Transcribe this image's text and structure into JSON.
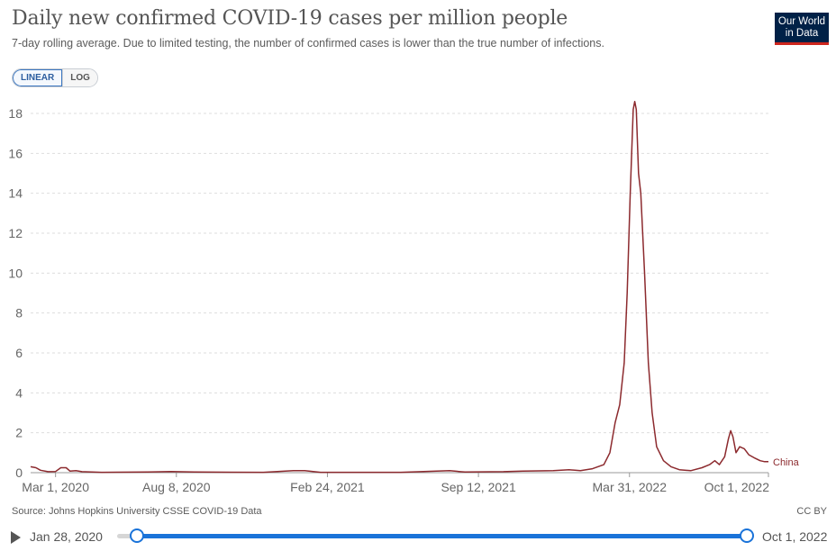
{
  "header": {
    "title": "Daily new confirmed COVID-19 cases per million people",
    "subtitle": "7-day rolling average. Due to limited testing, the number of confirmed cases is lower than the true number of infections.",
    "logo_line1": "Our World",
    "logo_line2": "in Data"
  },
  "controls": {
    "linear_label": "LINEAR",
    "log_label": "LOG",
    "active_scale": "linear"
  },
  "footer": {
    "source": "Source: Johns Hopkins University CSSE COVID-19 Data",
    "license": "CC BY"
  },
  "timeline": {
    "start_label": "Jan 28, 2020",
    "end_label": "Oct 1, 2022"
  },
  "colors": {
    "line": "#8c2a2e",
    "grid": "#dddddd",
    "logo_bg": "#002147",
    "accent": "#1a73d9"
  },
  "chart_data": {
    "type": "line",
    "title": "Daily new confirmed COVID-19 cases per million people",
    "xlabel": "",
    "ylabel": "",
    "ylim": [
      0,
      18
    ],
    "yticks": [
      0,
      2,
      4,
      6,
      8,
      10,
      12,
      14,
      16,
      18
    ],
    "xlim": [
      "2020-01-28",
      "2022-10-01"
    ],
    "xticks": [
      {
        "date": "2020-03-01",
        "label": "Mar 1, 2020"
      },
      {
        "date": "2020-08-08",
        "label": "Aug 8, 2020"
      },
      {
        "date": "2021-02-24",
        "label": "Feb 24, 2021"
      },
      {
        "date": "2021-09-12",
        "label": "Sep 12, 2021"
      },
      {
        "date": "2022-03-31",
        "label": "Mar 31, 2022"
      },
      {
        "date": "2022-10-01",
        "label": "Oct 1, 2022"
      }
    ],
    "grid": true,
    "series": [
      {
        "name": "China",
        "points": [
          [
            "2020-01-28",
            0.3
          ],
          [
            "2020-02-04",
            0.25
          ],
          [
            "2020-02-10",
            0.12
          ],
          [
            "2020-02-20",
            0.05
          ],
          [
            "2020-03-01",
            0.06
          ],
          [
            "2020-03-08",
            0.25
          ],
          [
            "2020-03-15",
            0.25
          ],
          [
            "2020-03-20",
            0.08
          ],
          [
            "2020-03-28",
            0.1
          ],
          [
            "2020-04-05",
            0.05
          ],
          [
            "2020-05-01",
            0.02
          ],
          [
            "2020-07-01",
            0.03
          ],
          [
            "2020-08-01",
            0.06
          ],
          [
            "2020-09-01",
            0.03
          ],
          [
            "2020-12-01",
            0.02
          ],
          [
            "2021-01-10",
            0.1
          ],
          [
            "2021-01-25",
            0.1
          ],
          [
            "2021-02-15",
            0.02
          ],
          [
            "2021-06-01",
            0.02
          ],
          [
            "2021-08-05",
            0.1
          ],
          [
            "2021-08-25",
            0.03
          ],
          [
            "2021-10-15",
            0.05
          ],
          [
            "2021-11-10",
            0.08
          ],
          [
            "2021-12-20",
            0.1
          ],
          [
            "2022-01-10",
            0.15
          ],
          [
            "2022-01-25",
            0.1
          ],
          [
            "2022-02-10",
            0.2
          ],
          [
            "2022-02-25",
            0.4
          ],
          [
            "2022-03-05",
            1.0
          ],
          [
            "2022-03-12",
            2.5
          ],
          [
            "2022-03-18",
            3.4
          ],
          [
            "2022-03-24",
            5.5
          ],
          [
            "2022-03-28",
            9.0
          ],
          [
            "2022-04-01",
            14.0
          ],
          [
            "2022-04-05",
            18.2
          ],
          [
            "2022-04-07",
            18.6
          ],
          [
            "2022-04-09",
            18.2
          ],
          [
            "2022-04-12",
            15.0
          ],
          [
            "2022-04-15",
            14.0
          ],
          [
            "2022-04-20",
            10.0
          ],
          [
            "2022-04-25",
            5.5
          ],
          [
            "2022-04-30",
            3.0
          ],
          [
            "2022-05-06",
            1.3
          ],
          [
            "2022-05-15",
            0.6
          ],
          [
            "2022-05-25",
            0.3
          ],
          [
            "2022-06-05",
            0.15
          ],
          [
            "2022-06-20",
            0.1
          ],
          [
            "2022-07-05",
            0.25
          ],
          [
            "2022-07-15",
            0.4
          ],
          [
            "2022-07-22",
            0.6
          ],
          [
            "2022-07-28",
            0.4
          ],
          [
            "2022-08-04",
            0.8
          ],
          [
            "2022-08-09",
            1.7
          ],
          [
            "2022-08-12",
            2.1
          ],
          [
            "2022-08-15",
            1.8
          ],
          [
            "2022-08-19",
            1.0
          ],
          [
            "2022-08-24",
            1.3
          ],
          [
            "2022-08-30",
            1.2
          ],
          [
            "2022-09-05",
            0.9
          ],
          [
            "2022-09-12",
            0.75
          ],
          [
            "2022-09-20",
            0.6
          ],
          [
            "2022-09-26",
            0.55
          ],
          [
            "2022-10-01",
            0.55
          ]
        ]
      }
    ]
  }
}
